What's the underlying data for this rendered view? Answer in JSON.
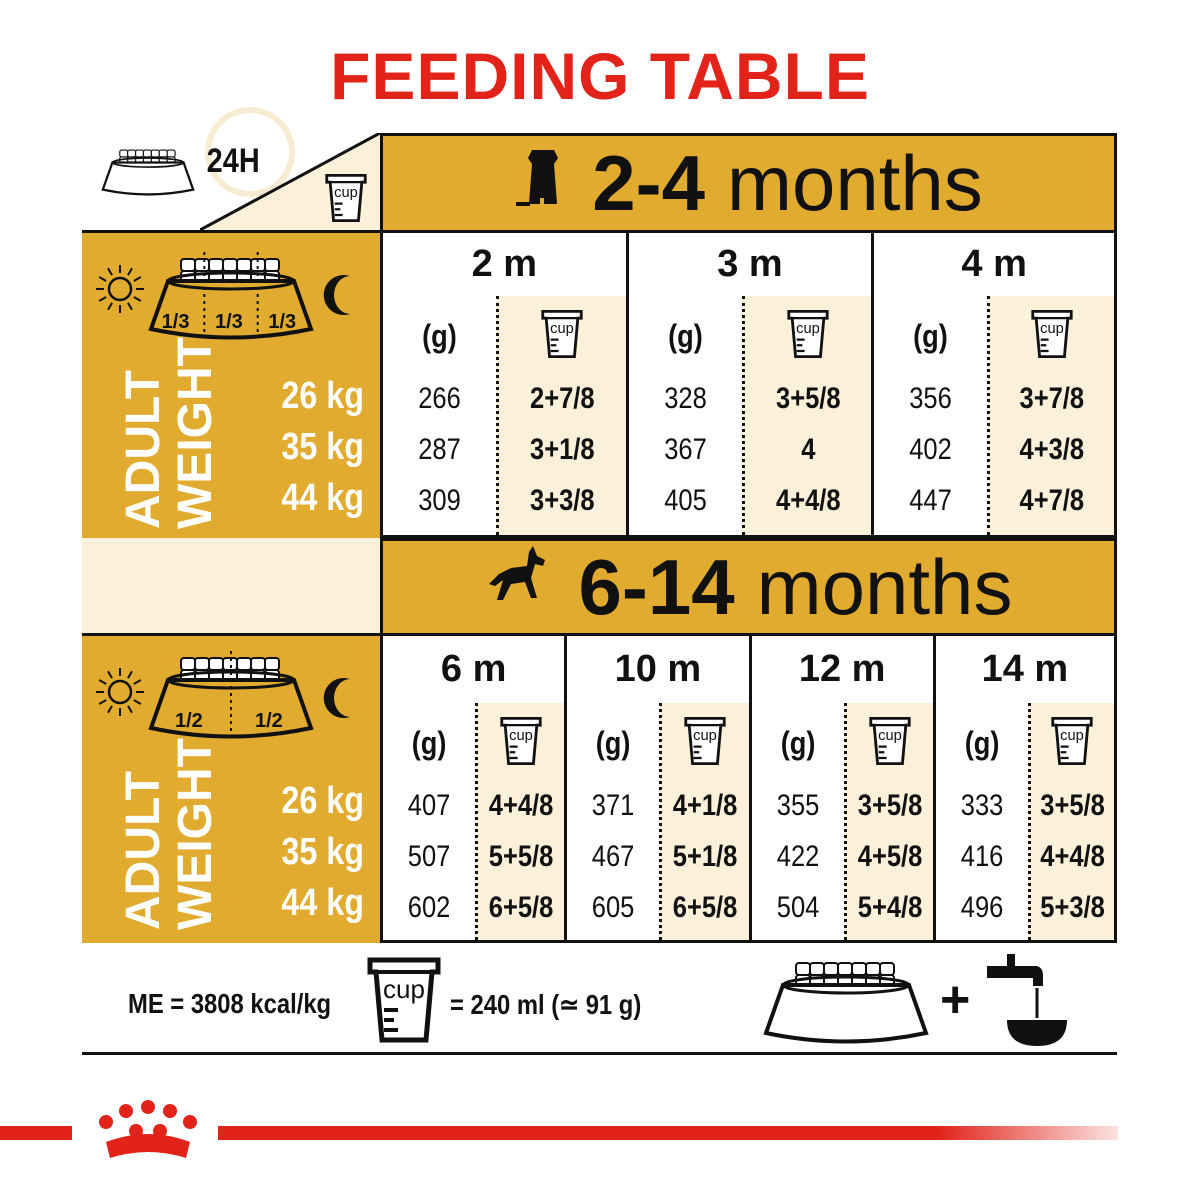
{
  "title": "FEEDING TABLE",
  "corner": {
    "duration": "24H",
    "cup_label": "cup"
  },
  "colors": {
    "title_red": "#e2231a",
    "gold": "#e0ab2e",
    "cream": "#fbf0da"
  },
  "unit_g": "(g)",
  "cup_label": "cup",
  "weight_label": [
    "ADULT",
    "WEIGHT"
  ],
  "weights": [
    "26 kg",
    "35 kg",
    "44 kg"
  ],
  "sections": [
    {
      "age_range_num": "2-4",
      "age_range_word": "months",
      "icon": "puppy-icon",
      "split": [
        "1/3",
        "1/3",
        "1/3"
      ],
      "columns": [
        {
          "label": "2 m",
          "grams": [
            "266",
            "287",
            "309"
          ],
          "cups": [
            "2+7/8",
            "3+1/8",
            "3+3/8"
          ]
        },
        {
          "label": "3 m",
          "grams": [
            "328",
            "367",
            "405"
          ],
          "cups": [
            "3+5/8",
            "4",
            "4+4/8"
          ]
        },
        {
          "label": "4 m",
          "grams": [
            "356",
            "402",
            "447"
          ],
          "cups": [
            "3+7/8",
            "4+3/8",
            "4+7/8"
          ]
        }
      ]
    },
    {
      "age_range_num": "6-14",
      "age_range_word": "months",
      "icon": "young-dog-icon",
      "split": [
        "1/2",
        "1/2"
      ],
      "columns": [
        {
          "label": "6 m",
          "grams": [
            "407",
            "507",
            "602"
          ],
          "cups": [
            "4+4/8",
            "5+5/8",
            "6+5/8"
          ]
        },
        {
          "label": "10 m",
          "grams": [
            "371",
            "467",
            "605"
          ],
          "cups": [
            "4+1/8",
            "5+1/8",
            "6+5/8"
          ]
        },
        {
          "label": "12 m",
          "grams": [
            "355",
            "422",
            "504"
          ],
          "cups": [
            "3+5/8",
            "4+5/8",
            "5+4/8"
          ]
        },
        {
          "label": "14 m",
          "grams": [
            "333",
            "416",
            "496"
          ],
          "cups": [
            "3+5/8",
            "4+4/8",
            "5+3/8"
          ]
        }
      ]
    }
  ],
  "footer": {
    "energy": "ME = 3808 kcal/kg",
    "cup_label": "cup",
    "cup_equiv": "= 240 ml (≃ 91 g)",
    "plus": "+"
  }
}
